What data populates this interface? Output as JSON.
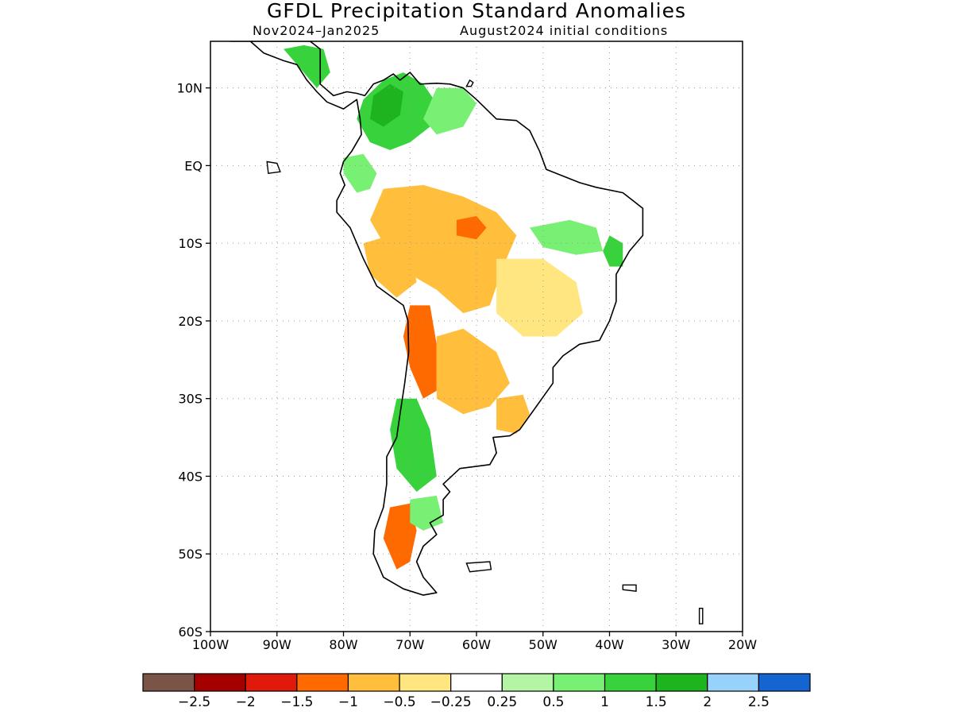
{
  "title": "GFDL Precipitation Standard Anomalies",
  "subtitle_left": "Nov2024–Jan2025",
  "subtitle_right": "August2024 initial conditions",
  "map": {
    "lon_range": [
      -100,
      -20
    ],
    "lat_range": [
      -60,
      16
    ],
    "x_ticks": [
      {
        "value": -100,
        "label": "100W"
      },
      {
        "value": -90,
        "label": "90W"
      },
      {
        "value": -80,
        "label": "80W"
      },
      {
        "value": -70,
        "label": "70W"
      },
      {
        "value": -60,
        "label": "60W"
      },
      {
        "value": -50,
        "label": "50W"
      },
      {
        "value": -40,
        "label": "40W"
      },
      {
        "value": -30,
        "label": "30W"
      },
      {
        "value": -20,
        "label": "20W"
      }
    ],
    "y_ticks": [
      {
        "value": 10,
        "label": "10N"
      },
      {
        "value": 0,
        "label": "EQ"
      },
      {
        "value": -10,
        "label": "10S"
      },
      {
        "value": -20,
        "label": "20S"
      },
      {
        "value": -30,
        "label": "30S"
      },
      {
        "value": -40,
        "label": "40S"
      },
      {
        "value": -50,
        "label": "50S"
      },
      {
        "value": -60,
        "label": "60S"
      }
    ],
    "grid": "dotted"
  },
  "colorbar": {
    "colors": [
      "#7a5446",
      "#a40000",
      "#e01a0a",
      "#ff6a00",
      "#ffbe3c",
      "#ffe680",
      "#ffffff",
      "#b4f5a5",
      "#78f073",
      "#37d23c",
      "#1eb41e",
      "#96d2fa",
      "#1464d2"
    ],
    "labels": [
      "−2.5",
      "−2",
      "−1.5",
      "−1",
      "−0.5",
      "−0.25",
      "0.25",
      "0.5",
      "1",
      "1.5",
      "2",
      "2.5"
    ]
  },
  "anomaly_regions": [
    {
      "name": "colombia-venezuela-wet",
      "color": "#37d23c",
      "lonlat": [
        [
          -77,
          8.5
        ],
        [
          -74,
          11
        ],
        [
          -71,
          12
        ],
        [
          -68,
          10.5
        ],
        [
          -66,
          8
        ],
        [
          -67,
          5
        ],
        [
          -70,
          3
        ],
        [
          -73,
          2
        ],
        [
          -76,
          3
        ],
        [
          -78,
          6
        ]
      ]
    },
    {
      "name": "colombia-core-wet",
      "color": "#1eb41e",
      "lonlat": [
        [
          -75.5,
          9
        ],
        [
          -73,
          10.5
        ],
        [
          -71,
          9.5
        ],
        [
          -71.5,
          6.5
        ],
        [
          -74,
          5
        ],
        [
          -76,
          6
        ]
      ]
    },
    {
      "name": "central-america-wet",
      "color": "#37d23c",
      "lonlat": [
        [
          -89,
          15
        ],
        [
          -86,
          15.5
        ],
        [
          -83,
          15
        ],
        [
          -82,
          12
        ],
        [
          -84,
          10
        ],
        [
          -86,
          12
        ]
      ]
    },
    {
      "name": "venezuela-east-wet",
      "color": "#78f073",
      "lonlat": [
        [
          -66,
          10
        ],
        [
          -62,
          10
        ],
        [
          -60,
          8
        ],
        [
          -62,
          5
        ],
        [
          -66,
          4
        ],
        [
          -68,
          6
        ]
      ]
    },
    {
      "name": "ecuador-wet",
      "color": "#78f073",
      "lonlat": [
        [
          -80,
          1
        ],
        [
          -77,
          1.5
        ],
        [
          -75,
          -1
        ],
        [
          -76,
          -3
        ],
        [
          -78,
          -3.5
        ],
        [
          -80,
          -1
        ]
      ]
    },
    {
      "name": "amazon-dry",
      "color": "#ffbe3c",
      "lonlat": [
        [
          -74,
          -3
        ],
        [
          -68,
          -2.5
        ],
        [
          -62,
          -4
        ],
        [
          -57,
          -6
        ],
        [
          -54,
          -9
        ],
        [
          -56,
          -13
        ],
        [
          -58,
          -18
        ],
        [
          -62,
          -19
        ],
        [
          -66,
          -16
        ],
        [
          -70,
          -14
        ],
        [
          -74,
          -10
        ],
        [
          -76,
          -7
        ]
      ]
    },
    {
      "name": "amazon-core-dry",
      "color": "#ff6a00",
      "lonlat": [
        [
          -63,
          -7
        ],
        [
          -60,
          -6.5
        ],
        [
          -58.5,
          -8
        ],
        [
          -60,
          -9.5
        ],
        [
          -63,
          -9
        ]
      ]
    },
    {
      "name": "peru-dry",
      "color": "#ffbe3c",
      "lonlat": [
        [
          -77,
          -10
        ],
        [
          -73,
          -9
        ],
        [
          -70,
          -11
        ],
        [
          -69,
          -15
        ],
        [
          -72,
          -17
        ],
        [
          -76,
          -14
        ]
      ]
    },
    {
      "name": "brazil-northeast-wet",
      "color": "#78f073",
      "lonlat": [
        [
          -52,
          -8
        ],
        [
          -46,
          -7
        ],
        [
          -42,
          -8
        ],
        [
          -41,
          -11
        ],
        [
          -45,
          -11.5
        ],
        [
          -50,
          -10.5
        ]
      ]
    },
    {
      "name": "bahia-wet",
      "color": "#37d23c",
      "lonlat": [
        [
          -40,
          -9
        ],
        [
          -38,
          -10
        ],
        [
          -38,
          -13
        ],
        [
          -40,
          -13
        ],
        [
          -41,
          -11
        ]
      ]
    },
    {
      "name": "central-brazil-dry",
      "color": "#ffe680",
      "lonlat": [
        [
          -57,
          -12
        ],
        [
          -50,
          -12
        ],
        [
          -45,
          -15
        ],
        [
          -44,
          -19
        ],
        [
          -48,
          -22
        ],
        [
          -53,
          -22
        ],
        [
          -57,
          -19
        ]
      ]
    },
    {
      "name": "andes-dry",
      "color": "#ff6a00",
      "lonlat": [
        [
          -70,
          -18
        ],
        [
          -67,
          -18
        ],
        [
          -66,
          -23
        ],
        [
          -66,
          -29
        ],
        [
          -68,
          -30
        ],
        [
          -70,
          -26
        ],
        [
          -71,
          -22
        ]
      ]
    },
    {
      "name": "argentina-north-dry",
      "color": "#ffbe3c",
      "lonlat": [
        [
          -66,
          -22
        ],
        [
          -62,
          -21
        ],
        [
          -57,
          -24
        ],
        [
          -55,
          -28
        ],
        [
          -58,
          -31
        ],
        [
          -62,
          -32
        ],
        [
          -66,
          -30
        ]
      ]
    },
    {
      "name": "uruguay-dry",
      "color": "#ffbe3c",
      "lonlat": [
        [
          -57,
          -30
        ],
        [
          -53,
          -29.5
        ],
        [
          -52,
          -32
        ],
        [
          -54,
          -34.5
        ],
        [
          -57,
          -34
        ]
      ]
    },
    {
      "name": "chile-central-wet",
      "color": "#37d23c",
      "lonlat": [
        [
          -72,
          -30
        ],
        [
          -69,
          -30
        ],
        [
          -67,
          -34
        ],
        [
          -66,
          -40
        ],
        [
          -69,
          -42
        ],
        [
          -72,
          -39
        ],
        [
          -73,
          -34
        ]
      ]
    },
    {
      "name": "patagonia-dry",
      "color": "#ff6a00",
      "lonlat": [
        [
          -73,
          -44
        ],
        [
          -70,
          -43.5
        ],
        [
          -69,
          -47
        ],
        [
          -70,
          -51
        ],
        [
          -72,
          -52
        ],
        [
          -74,
          -48
        ]
      ]
    },
    {
      "name": "patagonia-wet",
      "color": "#78f073",
      "lonlat": [
        [
          -70,
          -43
        ],
        [
          -66,
          -42.5
        ],
        [
          -65,
          -46
        ],
        [
          -68,
          -47
        ],
        [
          -70,
          -46
        ]
      ]
    }
  ]
}
